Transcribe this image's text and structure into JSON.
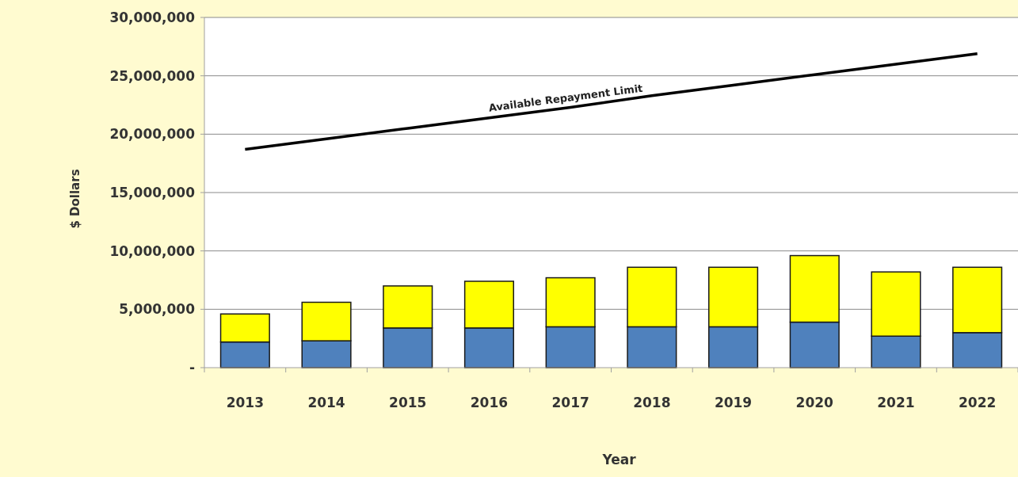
{
  "chart_data": {
    "type": "bar",
    "stacked": true,
    "xlabel": "Year",
    "ylabel": "$ Dollars",
    "categories": [
      "2013",
      "2014",
      "2015",
      "2016",
      "2017",
      "2018",
      "2019",
      "2020",
      "2021",
      "2022"
    ],
    "series": [
      {
        "color": "#4f81bd",
        "values": [
          2200000,
          2300000,
          3400000,
          3400000,
          3500000,
          3500000,
          3500000,
          3900000,
          2700000,
          3000000
        ]
      },
      {
        "color": "#ffff00",
        "values": [
          2400000,
          3300000,
          3600000,
          4000000,
          4200000,
          5100000,
          5100000,
          5700000,
          5500000,
          5600000
        ]
      },
      {
        "type": "line",
        "name": "Available Repayment Limit",
        "color": "#000000",
        "values": [
          18700000,
          19600000,
          20500000,
          21400000,
          22300000,
          23300000,
          24200000,
          25100000,
          26000000,
          26900000
        ]
      }
    ],
    "ylim": [
      0,
      30000000
    ],
    "yticks": [
      {
        "value": 0,
        "label": "-"
      },
      {
        "value": 5000000,
        "label": "5,000,000"
      },
      {
        "value": 10000000,
        "label": "10,000,000"
      },
      {
        "value": 15000000,
        "label": "15,000,000"
      },
      {
        "value": 20000000,
        "label": "20,000,000"
      },
      {
        "value": 25000000,
        "label": "25,000,000"
      },
      {
        "value": 30000000,
        "label": "30,000,000"
      }
    ],
    "grid": "y"
  }
}
